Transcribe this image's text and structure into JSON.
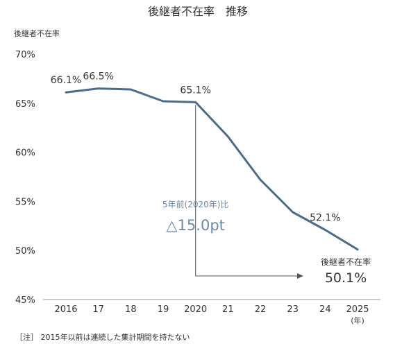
{
  "title": "後継者不在率　推移",
  "note": "［注］ 2015年以前は連続した集計期間を持たない",
  "chart_data": {
    "type": "line",
    "title": "後継者不在率　推移",
    "ylabel": "後継者不在率",
    "xlabel_unit": "(年)",
    "ylim": [
      45,
      70
    ],
    "yticks": [
      45,
      50,
      55,
      60,
      65,
      70
    ],
    "ytick_labels": [
      "45%",
      "50%",
      "55%",
      "60%",
      "65%",
      "70%"
    ],
    "categories": [
      "2016",
      "17",
      "18",
      "19",
      "2020",
      "21",
      "22",
      "23",
      "24",
      "2025"
    ],
    "series": [
      {
        "values": [
          66.1,
          66.5,
          66.4,
          65.2,
          65.1,
          61.6,
          57.2,
          53.9,
          52.1,
          50.1
        ],
        "color": "#4a6b89"
      }
    ],
    "data_labels": [
      {
        "index": 0,
        "text": "66.1%"
      },
      {
        "index": 1,
        "text": "66.5%"
      },
      {
        "index": 4,
        "text": "65.1%"
      },
      {
        "index": 8,
        "text": "52.1%"
      }
    ],
    "annotation": {
      "from_index": 4,
      "to_index": 9,
      "line1": "5年前(2020年)比",
      "line2": "△15.0pt",
      "color": "#6b8aaa"
    },
    "end_label": {
      "index": 9,
      "line1": "後継者不在率",
      "line2": "50.1%"
    },
    "grid": false
  }
}
